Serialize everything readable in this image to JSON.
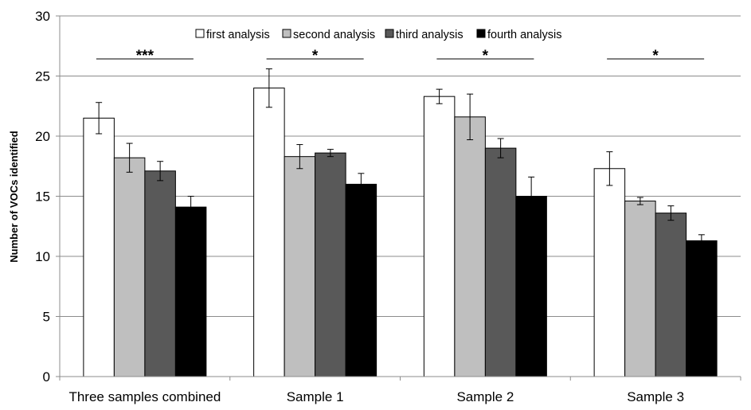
{
  "chart_data": {
    "type": "bar",
    "title": "",
    "xlabel": "",
    "ylabel": "Number of VOCs identified",
    "ylim": [
      0,
      30
    ],
    "yticks": [
      0,
      5,
      10,
      15,
      20,
      25,
      30
    ],
    "grid": true,
    "legend_position": "top",
    "categories": [
      "Three samples combined",
      "Sample 1",
      "Sample 2",
      "Sample 3"
    ],
    "series": [
      {
        "name": "first analysis",
        "color": "#ffffff",
        "values": [
          21.5,
          24.0,
          23.3,
          17.3
        ],
        "errors": [
          1.3,
          1.6,
          0.6,
          1.4
        ]
      },
      {
        "name": "second analysis",
        "color": "#bfbfbf",
        "values": [
          18.2,
          18.3,
          21.6,
          14.6
        ],
        "errors": [
          1.2,
          1.0,
          1.9,
          0.3
        ]
      },
      {
        "name": "third analysis",
        "color": "#595959",
        "values": [
          17.1,
          18.6,
          19.0,
          13.6
        ],
        "errors": [
          0.8,
          0.3,
          0.8,
          0.6
        ]
      },
      {
        "name": "fourth analysis",
        "color": "#000000",
        "values": [
          14.1,
          16.0,
          15.0,
          11.3
        ],
        "errors": [
          0.9,
          0.9,
          1.6,
          0.5
        ]
      }
    ],
    "significance": [
      "***",
      "*",
      "*",
      "*"
    ]
  }
}
